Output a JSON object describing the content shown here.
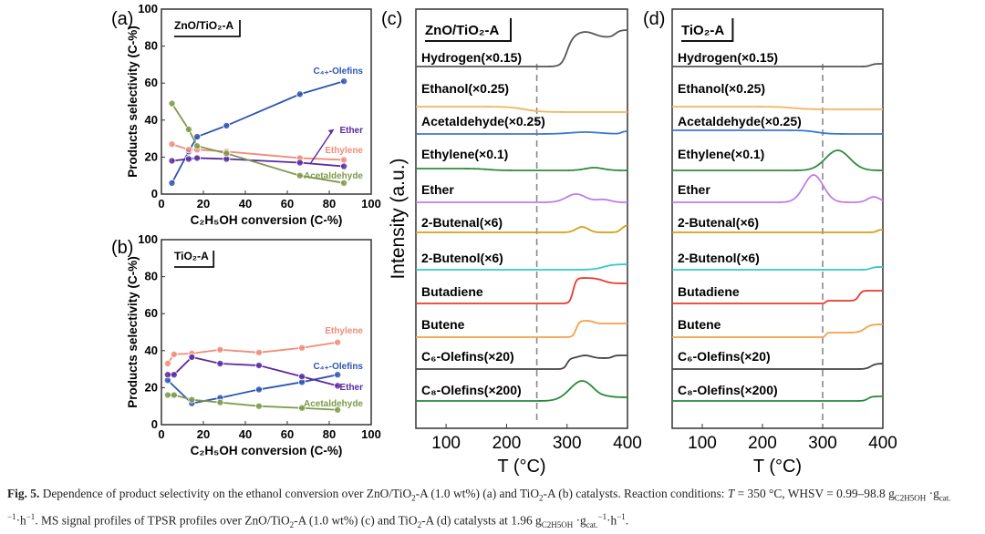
{
  "chart_data": [
    {
      "panel": "(a)",
      "type": "line",
      "legend_box": "ZnO/TiO₂-A",
      "xlabel": "C₂H₅OH conversion (C-%)",
      "ylabel": "Products selectivity (C-%)",
      "xlim": [
        0,
        100
      ],
      "ylim": [
        0,
        100
      ],
      "xticks": [
        "0",
        "20",
        "40",
        "60",
        "80",
        "100"
      ],
      "yticks": [
        "0",
        "20",
        "40",
        "60",
        "80",
        "100"
      ],
      "series": [
        {
          "name": "C₄₊-Olefins",
          "color": "#2f55b3",
          "x": [
            5,
            13,
            17,
            31,
            66,
            87
          ],
          "y": [
            6,
            23,
            31,
            37,
            54,
            61
          ]
        },
        {
          "name": "Ethylene",
          "color": "#f28b7a",
          "x": [
            5,
            13,
            17,
            31,
            66,
            87
          ],
          "y": [
            27,
            24,
            24,
            23,
            19.5,
            18.5
          ]
        },
        {
          "name": "Ether",
          "color": "#5a2aa0",
          "x": [
            5,
            13,
            17,
            31,
            66,
            87
          ],
          "y": [
            18,
            19,
            19.5,
            19,
            17,
            15
          ]
        },
        {
          "name": "Acetaldehyde",
          "color": "#7e9a4a",
          "x": [
            5,
            13,
            17,
            31,
            66,
            87
          ],
          "y": [
            49,
            35,
            26,
            22,
            10,
            6
          ]
        }
      ]
    },
    {
      "panel": "(b)",
      "type": "line",
      "legend_box": "TiO₂-A",
      "xlabel": "C₂H₅OH conversion (C-%)",
      "ylabel": "Products selectivity (C-%)",
      "xlim": [
        0,
        100
      ],
      "ylim": [
        0,
        100
      ],
      "xticks": [
        "0",
        "20",
        "40",
        "60",
        "80",
        "100"
      ],
      "yticks": [
        "0",
        "20",
        "40",
        "60",
        "80",
        "100"
      ],
      "series": [
        {
          "name": "Ethylene",
          "color": "#f28b7a",
          "x": [
            3,
            6,
            14.5,
            28,
            46.5,
            67,
            84
          ],
          "y": [
            33,
            38,
            38.5,
            40.5,
            39,
            41.5,
            44.5
          ]
        },
        {
          "name": "C₄₊-Olefins",
          "color": "#2f55b3",
          "x": [
            3,
            14.5,
            28,
            46.5,
            67,
            84
          ],
          "y": [
            24,
            11.5,
            14.5,
            19,
            23,
            27
          ]
        },
        {
          "name": "Ether",
          "color": "#5a2aa0",
          "x": [
            3,
            6,
            14.5,
            28,
            46.5,
            67,
            84
          ],
          "y": [
            27,
            27,
            36.5,
            33,
            32,
            26,
            21
          ]
        },
        {
          "name": "Acetaldehyde",
          "color": "#7e9a4a",
          "x": [
            3,
            6,
            14.5,
            28,
            46.5,
            67,
            84
          ],
          "y": [
            16,
            16,
            13.5,
            12,
            10,
            9,
            8
          ]
        }
      ]
    },
    {
      "panel": "(c)",
      "type": "line",
      "legend_box": "ZnO/TiO₂-A",
      "xlabel": "T (°C)",
      "ylabel": "Intensity (a.u.)",
      "xlim": [
        50,
        400
      ],
      "xticks": [
        "100",
        "200",
        "300",
        "400"
      ],
      "dashed_line_T": 250,
      "series": [
        {
          "name": "Hydrogen(×0.15)",
          "color": "#555555",
          "base": 0,
          "features": [
            {
              "kind": "step",
              "T": 300,
              "h": 32,
              "w": 14
            },
            {
              "kind": "peak",
              "T": 330,
              "h": 6,
              "w": 15
            },
            {
              "kind": "step",
              "T": 380,
              "h": 8,
              "w": 12
            }
          ]
        },
        {
          "name": "Ethanol(×0.25)",
          "color": "#f2b560",
          "base": 4,
          "features": [
            {
              "kind": "step",
              "T": 230,
              "h": -6,
              "w": 40
            }
          ]
        },
        {
          "name": "Acetaldehyde(×0.25)",
          "color": "#3a78d8",
          "base": 0,
          "features": [
            {
              "kind": "peak",
              "T": 330,
              "h": 2,
              "w": 25
            },
            {
              "kind": "step",
              "T": 390,
              "h": 3,
              "w": 8
            }
          ]
        },
        {
          "name": "Ethylene(×0.1)",
          "color": "#2e8b3e",
          "base": 2,
          "features": [
            {
              "kind": "step",
              "T": 170,
              "h": -2,
              "w": 30
            },
            {
              "kind": "peak",
              "T": 345,
              "h": 3,
              "w": 15
            }
          ]
        },
        {
          "name": "Ether",
          "color": "#c07ce8",
          "base": 0,
          "features": [
            {
              "kind": "peak",
              "T": 315,
              "h": 9,
              "w": 16
            },
            {
              "kind": "peak",
              "T": 360,
              "h": 3,
              "w": 12
            }
          ]
        },
        {
          "name": "2-Butenal(×6)",
          "color": "#d4a017",
          "base": 0,
          "features": [
            {
              "kind": "peak",
              "T": 325,
              "h": 6,
              "w": 10
            },
            {
              "kind": "step",
              "T": 390,
              "h": 8,
              "w": 10
            }
          ]
        },
        {
          "name": "2-Butenol(×6)",
          "color": "#35c9c9",
          "base": 0,
          "features": [
            {
              "kind": "step",
              "T": 360,
              "h": 6,
              "w": 25
            }
          ]
        },
        {
          "name": "Butadiene",
          "color": "#e83a30",
          "base": 0,
          "features": [
            {
              "kind": "step",
              "T": 310,
              "h": 28,
              "w": 8
            },
            {
              "kind": "step",
              "T": 360,
              "h": -6,
              "w": 20
            }
          ]
        },
        {
          "name": "Butene",
          "color": "#f5a048",
          "base": 0,
          "features": [
            {
              "kind": "step",
              "T": 315,
              "h": 18,
              "w": 8
            },
            {
              "kind": "step",
              "T": 345,
              "h": -3,
              "w": 10
            }
          ]
        },
        {
          "name": "C₆-Olefins(×20)",
          "color": "#444444",
          "base": 0,
          "features": [
            {
              "kind": "step",
              "T": 300,
              "h": 12,
              "w": 8
            },
            {
              "kind": "peak",
              "T": 330,
              "h": 3,
              "w": 10
            },
            {
              "kind": "step",
              "T": 375,
              "h": 3,
              "w": 8
            }
          ]
        },
        {
          "name": "C₈-Olefins(×200)",
          "color": "#2a8a3a",
          "base": 0,
          "features": [
            {
              "kind": "peak",
              "T": 325,
              "h": 22,
              "w": 20
            },
            {
              "kind": "step",
              "T": 360,
              "h": 4,
              "w": 15
            }
          ]
        }
      ]
    },
    {
      "panel": "(d)",
      "type": "line",
      "legend_box": "TiO₂-A",
      "xlabel": "T (°C)",
      "xlim": [
        50,
        400
      ],
      "xticks": [
        "100",
        "200",
        "300",
        "400"
      ],
      "dashed_line_T": 300,
      "series": [
        {
          "name": "Hydrogen(×0.15)",
          "color": "#555555",
          "base": 0,
          "features": [
            {
              "kind": "step",
              "T": 380,
              "h": 3,
              "w": 10
            }
          ]
        },
        {
          "name": "Ethanol(×0.25)",
          "color": "#f2b560",
          "base": 4,
          "features": [
            {
              "kind": "step",
              "T": 250,
              "h": -3,
              "w": 40
            }
          ]
        },
        {
          "name": "Acetaldehyde(×0.25)",
          "color": "#3a78d8",
          "base": 4,
          "features": [
            {
              "kind": "step",
              "T": 290,
              "h": -4,
              "w": 30
            }
          ]
        },
        {
          "name": "Ethylene(×0.1)",
          "color": "#2e8b3e",
          "base": 0,
          "features": [
            {
              "kind": "peak",
              "T": 325,
              "h": 22,
              "w": 20
            }
          ]
        },
        {
          "name": "Ether",
          "color": "#c07ce8",
          "base": 0,
          "features": [
            {
              "kind": "peak",
              "T": 285,
              "h": 30,
              "w": 16
            },
            {
              "kind": "peak",
              "T": 385,
              "h": 6,
              "w": 10
            }
          ]
        },
        {
          "name": "2-Butenal(×6)",
          "color": "#d4a017",
          "base": 0,
          "features": [
            {
              "kind": "step",
              "T": 390,
              "h": 3,
              "w": 8
            }
          ]
        },
        {
          "name": "2-Butenol(×6)",
          "color": "#35c9c9",
          "base": 0,
          "features": [
            {
              "kind": "step",
              "T": 380,
              "h": 3,
              "w": 10
            }
          ]
        },
        {
          "name": "Butadiene",
          "color": "#e83a30",
          "base": 0,
          "features": [
            {
              "kind": "step",
              "T": 305,
              "h": 3,
              "w": 3
            },
            {
              "kind": "step",
              "T": 360,
              "h": 11,
              "w": 8
            }
          ]
        },
        {
          "name": "Butene",
          "color": "#f5a048",
          "base": 0,
          "features": [
            {
              "kind": "step",
              "T": 305,
              "h": 5,
              "w": 4
            },
            {
              "kind": "step",
              "T": 370,
              "h": 9,
              "w": 15
            }
          ]
        },
        {
          "name": "C₆-Olefins(×20)",
          "color": "#444444",
          "base": 0,
          "features": [
            {
              "kind": "step",
              "T": 380,
              "h": 6,
              "w": 12
            }
          ]
        },
        {
          "name": "C₈-Olefins(×200)",
          "color": "#2a8a3a",
          "base": 0,
          "features": [
            {
              "kind": "step",
              "T": 375,
              "h": 5,
              "w": 10
            }
          ]
        }
      ]
    }
  ],
  "caption": [
    {
      "t": "Fig. 5.",
      "s": "b"
    },
    {
      "t": " Dependence of product selectivity on the ethanol conversion over ZnO/TiO"
    },
    {
      "t": "2",
      "s": "sub"
    },
    {
      "t": "-A (1.0 wt%) (a) and TiO"
    },
    {
      "t": "2",
      "s": "sub"
    },
    {
      "t": "-A (b) catalysts. Reaction conditions: "
    },
    {
      "t": "T",
      "s": "i"
    },
    {
      "t": " = 350 °C, WHSV = 0.99–98.8 g"
    },
    {
      "t": "C2H5OH",
      "s": "sub"
    },
    {
      "t": " ·g"
    },
    {
      "t": "cat.",
      "s": "sub"
    },
    {
      "t": "−1",
      "s": "sup"
    },
    {
      "t": "·h"
    },
    {
      "t": "−1",
      "s": "sup"
    },
    {
      "t": ". MS signal profiles of TPSR profiles over ZnO/TiO"
    },
    {
      "t": "2",
      "s": "sub"
    },
    {
      "t": "-A (1.0 wt%) (c) and TiO"
    },
    {
      "t": "2",
      "s": "sub"
    },
    {
      "t": "-A (d) catalysts at 1.96 g"
    },
    {
      "t": "C2H5OH",
      "s": "sub"
    },
    {
      "t": " ·g"
    },
    {
      "t": "cat.",
      "s": "sub"
    },
    {
      "t": "−1",
      "s": "sup"
    },
    {
      "t": "·h"
    },
    {
      "t": "−1",
      "s": "sup"
    },
    {
      "t": "."
    }
  ]
}
